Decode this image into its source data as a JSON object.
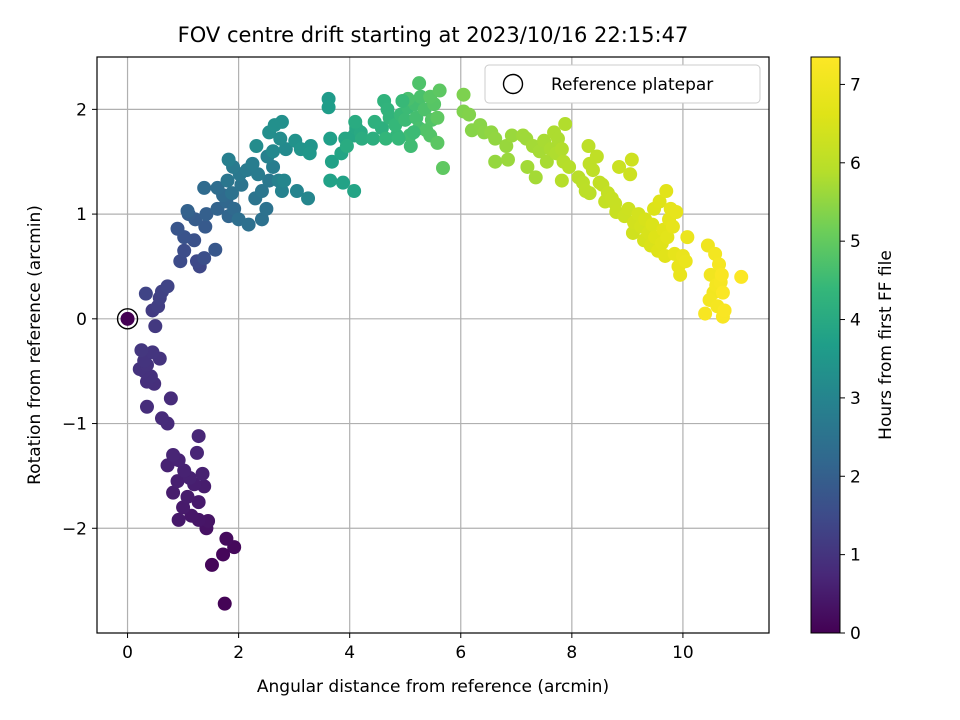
{
  "chart_data": {
    "type": "scatter",
    "title": "FOV centre drift starting at 2023/10/16 22:15:47",
    "xlabel": "Angular distance from reference (arcmin)",
    "ylabel": "Rotation from reference (arcmin)",
    "xlim": [
      -0.55,
      11.55
    ],
    "ylim": [
      -3.0,
      2.5
    ],
    "xticks": [
      0,
      2,
      4,
      6,
      8,
      10
    ],
    "yticks": [
      -2,
      -1,
      0,
      1,
      2
    ],
    "xtick_labels": [
      "0",
      "2",
      "4",
      "6",
      "8",
      "10"
    ],
    "ytick_labels": [
      "−2",
      "−1",
      "0",
      "1",
      "2"
    ],
    "grid": true,
    "legend": {
      "position": "top-right",
      "label": "Reference platepar"
    },
    "reference_point": {
      "x": 0,
      "y": 0
    },
    "colorbar": {
      "label": "Hours from first FF file",
      "colormap": "viridis",
      "range": [
        0,
        7.35
      ],
      "ticks": [
        0,
        1,
        2,
        3,
        4,
        5,
        6,
        7
      ],
      "tick_labels": [
        "0",
        "1",
        "2",
        "3",
        "4",
        "5",
        "6",
        "7"
      ]
    },
    "points": [
      [
        0.0,
        0.0,
        0.0
      ],
      [
        1.75,
        -2.72,
        0.05
      ],
      [
        1.52,
        -2.35,
        0.1
      ],
      [
        1.72,
        -2.25,
        0.12
      ],
      [
        1.92,
        -2.18,
        0.15
      ],
      [
        1.78,
        -2.1,
        0.18
      ],
      [
        1.42,
        -2.0,
        0.3
      ],
      [
        1.45,
        -1.93,
        0.35
      ],
      [
        1.28,
        -1.92,
        0.38
      ],
      [
        1.15,
        -1.88,
        0.4
      ],
      [
        0.92,
        -1.92,
        0.45
      ],
      [
        1.0,
        -1.8,
        0.47
      ],
      [
        1.28,
        -1.75,
        0.48
      ],
      [
        1.08,
        -1.7,
        0.5
      ],
      [
        0.82,
        -1.66,
        0.52
      ],
      [
        1.38,
        -1.6,
        0.52
      ],
      [
        1.2,
        -1.58,
        0.55
      ],
      [
        0.9,
        -1.55,
        0.57
      ],
      [
        1.12,
        -1.52,
        0.6
      ],
      [
        1.35,
        -1.48,
        0.6
      ],
      [
        1.02,
        -1.45,
        0.62
      ],
      [
        0.72,
        -1.4,
        0.62
      ],
      [
        0.92,
        -1.35,
        0.65
      ],
      [
        0.82,
        -1.3,
        0.68
      ],
      [
        1.25,
        -1.28,
        0.7
      ],
      [
        1.28,
        -1.12,
        0.72
      ],
      [
        0.72,
        -1.0,
        0.78
      ],
      [
        0.62,
        -0.95,
        0.8
      ],
      [
        0.78,
        -0.76,
        0.82
      ],
      [
        0.35,
        -0.84,
        0.85
      ],
      [
        0.48,
        -0.62,
        0.88
      ],
      [
        0.35,
        -0.6,
        0.9
      ],
      [
        0.42,
        -0.55,
        0.92
      ],
      [
        0.3,
        -0.5,
        0.94
      ],
      [
        0.22,
        -0.48,
        0.95
      ],
      [
        0.35,
        -0.44,
        0.97
      ],
      [
        0.58,
        -0.38,
        0.99
      ],
      [
        0.3,
        -0.4,
        1.0
      ],
      [
        0.45,
        -0.32,
        1.02
      ],
      [
        0.25,
        -0.3,
        1.05
      ],
      [
        0.5,
        -0.07,
        1.1
      ],
      [
        0.45,
        0.08,
        1.15
      ],
      [
        0.55,
        0.12,
        1.2
      ],
      [
        0.58,
        0.2,
        1.25
      ],
      [
        0.62,
        0.26,
        1.3
      ],
      [
        0.72,
        0.31,
        1.35
      ],
      [
        0.33,
        0.24,
        1.35
      ],
      [
        1.3,
        0.5,
        1.4
      ],
      [
        1.25,
        0.55,
        1.45
      ],
      [
        0.95,
        0.55,
        1.5
      ],
      [
        1.02,
        0.65,
        1.55
      ],
      [
        1.38,
        0.58,
        1.6
      ],
      [
        1.2,
        0.75,
        1.65
      ],
      [
        1.02,
        0.78,
        1.7
      ],
      [
        0.9,
        0.86,
        1.75
      ],
      [
        1.58,
        0.66,
        1.8
      ],
      [
        1.4,
        0.88,
        1.85
      ],
      [
        1.22,
        0.95,
        1.9
      ],
      [
        1.1,
        1.0,
        1.95
      ],
      [
        1.42,
        1.0,
        2.0
      ],
      [
        1.08,
        1.03,
        2.05
      ],
      [
        1.62,
        1.05,
        2.1
      ],
      [
        1.82,
        0.98,
        2.15
      ],
      [
        1.78,
        1.12,
        2.2
      ],
      [
        1.92,
        1.05,
        2.25
      ],
      [
        1.72,
        1.18,
        2.3
      ],
      [
        1.62,
        1.25,
        2.35
      ],
      [
        1.38,
        1.25,
        2.3
      ],
      [
        2.0,
        0.95,
        2.4
      ],
      [
        2.18,
        0.9,
        2.42
      ],
      [
        2.42,
        0.95,
        2.45
      ],
      [
        2.5,
        1.05,
        2.5
      ],
      [
        1.88,
        1.2,
        2.5
      ],
      [
        2.05,
        1.28,
        2.55
      ],
      [
        2.3,
        1.15,
        2.55
      ],
      [
        2.42,
        1.22,
        2.6
      ],
      [
        2.55,
        1.32,
        2.65
      ],
      [
        1.8,
        1.32,
        2.6
      ],
      [
        2.02,
        1.38,
        2.65
      ],
      [
        1.9,
        1.45,
        2.7
      ],
      [
        2.15,
        1.42,
        2.7
      ],
      [
        2.35,
        1.38,
        2.75
      ],
      [
        2.62,
        1.45,
        2.8
      ],
      [
        2.25,
        1.48,
        2.8
      ],
      [
        1.82,
        1.52,
        2.85
      ],
      [
        2.52,
        1.55,
        2.9
      ],
      [
        2.72,
        1.32,
        2.9
      ],
      [
        2.78,
        1.22,
        2.95
      ],
      [
        3.05,
        1.22,
        3.0
      ],
      [
        3.25,
        1.15,
        3.05
      ],
      [
        2.82,
        1.32,
        3.05
      ],
      [
        2.62,
        1.6,
        3.1
      ],
      [
        2.85,
        1.62,
        3.15
      ],
      [
        2.75,
        1.72,
        3.2
      ],
      [
        2.55,
        1.78,
        3.25
      ],
      [
        2.65,
        1.85,
        3.3
      ],
      [
        2.78,
        1.88,
        3.3
      ],
      [
        3.02,
        1.7,
        3.35
      ],
      [
        3.12,
        1.62,
        3.4
      ],
      [
        3.3,
        1.65,
        3.45
      ],
      [
        3.28,
        1.58,
        3.5
      ],
      [
        2.32,
        1.65,
        3.2
      ],
      [
        3.62,
        2.1,
        3.6
      ],
      [
        3.62,
        2.02,
        3.65
      ],
      [
        3.65,
        1.72,
        3.7
      ],
      [
        3.68,
        1.5,
        3.75
      ],
      [
        3.65,
        1.32,
        3.78
      ],
      [
        3.88,
        1.3,
        3.8
      ],
      [
        4.08,
        1.22,
        3.85
      ],
      [
        3.85,
        1.58,
        3.85
      ],
      [
        3.92,
        1.72,
        3.9
      ],
      [
        4.08,
        1.75,
        3.92
      ],
      [
        4.12,
        1.82,
        3.95
      ],
      [
        4.2,
        1.78,
        4.0
      ],
      [
        4.1,
        1.88,
        4.05
      ],
      [
        3.95,
        1.65,
        4.05
      ],
      [
        4.22,
        1.72,
        4.1
      ],
      [
        4.42,
        1.72,
        4.15
      ],
      [
        4.58,
        1.82,
        4.18
      ],
      [
        4.45,
        1.88,
        4.2
      ],
      [
        4.62,
        2.08,
        4.25
      ],
      [
        4.68,
        2.0,
        4.28
      ],
      [
        4.72,
        1.92,
        4.3
      ],
      [
        4.85,
        1.75,
        4.35
      ],
      [
        4.65,
        1.72,
        4.35
      ],
      [
        4.82,
        1.85,
        4.4
      ],
      [
        4.92,
        1.95,
        4.45
      ],
      [
        5.0,
        1.9,
        4.5
      ],
      [
        5.05,
        2.02,
        4.5
      ],
      [
        5.08,
        1.75,
        4.55
      ],
      [
        5.1,
        1.65,
        4.55
      ],
      [
        5.18,
        2.05,
        4.6
      ],
      [
        5.2,
        1.92,
        4.62
      ],
      [
        5.25,
        1.82,
        4.65
      ],
      [
        5.05,
        2.1,
        4.68
      ],
      [
        5.28,
        2.12,
        4.7
      ],
      [
        5.35,
        2.0,
        4.72
      ],
      [
        5.25,
        2.25,
        4.75
      ],
      [
        5.38,
        1.8,
        4.78
      ],
      [
        5.45,
        1.75,
        4.8
      ],
      [
        5.48,
        1.9,
        4.8
      ],
      [
        5.52,
        2.05,
        4.85
      ],
      [
        5.45,
        2.12,
        4.88
      ],
      [
        5.58,
        1.68,
        4.9
      ],
      [
        5.62,
        2.18,
        4.92
      ],
      [
        5.68,
        1.44,
        4.95
      ],
      [
        5.58,
        1.92,
        4.95
      ],
      [
        5.15,
        1.78,
        4.5
      ],
      [
        4.88,
        1.72,
        4.4
      ],
      [
        4.95,
        2.08,
        4.45
      ],
      [
        6.05,
        2.14,
        5.3
      ],
      [
        6.05,
        1.98,
        5.32
      ],
      [
        6.15,
        1.95,
        5.35
      ],
      [
        6.2,
        1.8,
        5.4
      ],
      [
        6.35,
        1.85,
        5.42
      ],
      [
        6.42,
        1.78,
        5.45
      ],
      [
        6.55,
        1.78,
        5.5
      ],
      [
        6.62,
        1.72,
        5.52
      ],
      [
        6.62,
        1.5,
        5.55
      ],
      [
        6.82,
        1.65,
        5.58
      ],
      [
        6.85,
        1.52,
        5.6
      ],
      [
        6.92,
        1.75,
        5.6
      ],
      [
        7.12,
        1.75,
        5.65
      ],
      [
        7.18,
        1.72,
        5.65
      ],
      [
        7.2,
        1.45,
        5.68
      ],
      [
        7.35,
        1.35,
        5.7
      ],
      [
        7.3,
        1.65,
        5.7
      ],
      [
        7.42,
        1.6,
        5.72
      ],
      [
        7.5,
        1.7,
        5.75
      ],
      [
        7.55,
        1.5,
        5.75
      ],
      [
        7.62,
        1.62,
        5.78
      ],
      [
        7.68,
        1.78,
        5.8
      ],
      [
        7.75,
        1.72,
        5.8
      ],
      [
        7.72,
        1.58,
        5.82
      ],
      [
        7.82,
        1.62,
        5.85
      ],
      [
        7.85,
        1.5,
        5.88
      ],
      [
        7.88,
        1.86,
        5.85
      ],
      [
        7.82,
        1.32,
        5.9
      ],
      [
        7.95,
        1.45,
        5.9
      ],
      [
        8.12,
        1.35,
        5.95
      ],
      [
        8.2,
        1.3,
        5.98
      ],
      [
        8.25,
        1.22,
        6.0
      ],
      [
        8.32,
        1.2,
        6.0
      ],
      [
        8.3,
        1.65,
        6.02
      ],
      [
        8.32,
        1.48,
        6.05
      ],
      [
        8.38,
        1.42,
        6.05
      ],
      [
        8.45,
        1.55,
        6.08
      ],
      [
        8.5,
        1.3,
        6.1
      ],
      [
        8.55,
        1.28,
        6.1
      ],
      [
        8.6,
        1.12,
        6.15
      ],
      [
        8.65,
        1.2,
        6.15
      ],
      [
        8.72,
        1.15,
        6.18
      ],
      [
        8.78,
        1.1,
        6.2
      ],
      [
        8.8,
        1.02,
        6.22
      ],
      [
        8.85,
        1.45,
        6.25
      ],
      [
        8.95,
        0.98,
        6.28
      ],
      [
        9.02,
        1.05,
        6.3
      ],
      [
        9.05,
        1.38,
        6.3
      ],
      [
        9.08,
        1.52,
        6.32
      ],
      [
        9.1,
        0.82,
        6.35
      ],
      [
        9.12,
        0.92,
        6.38
      ],
      [
        9.2,
        1.0,
        6.4
      ],
      [
        9.25,
        0.88,
        6.42
      ],
      [
        9.3,
        0.75,
        6.45
      ],
      [
        9.32,
        0.95,
        6.48
      ],
      [
        9.38,
        0.82,
        6.5
      ],
      [
        9.42,
        0.7,
        6.52
      ],
      [
        9.45,
        0.9,
        6.55
      ],
      [
        9.48,
        1.05,
        6.58
      ],
      [
        9.5,
        0.78,
        6.6
      ],
      [
        9.55,
        0.65,
        6.62
      ],
      [
        9.58,
        1.12,
        6.62
      ],
      [
        9.62,
        0.72,
        6.65
      ],
      [
        9.65,
        0.85,
        6.68
      ],
      [
        9.68,
        0.6,
        6.7
      ],
      [
        9.7,
        1.22,
        6.7
      ],
      [
        9.72,
        0.78,
        6.72
      ],
      [
        9.75,
        0.95,
        6.75
      ],
      [
        9.78,
        1.05,
        6.78
      ],
      [
        9.82,
        0.88,
        6.8
      ],
      [
        9.85,
        0.62,
        6.8
      ],
      [
        9.88,
        1.02,
        6.82
      ],
      [
        9.92,
        0.5,
        6.85
      ],
      [
        9.95,
        0.42,
        6.85
      ],
      [
        10.0,
        0.6,
        6.88
      ],
      [
        10.05,
        0.55,
        6.9
      ],
      [
        10.08,
        0.78,
        6.9
      ],
      [
        10.45,
        0.7,
        7.0
      ],
      [
        10.5,
        0.42,
        7.05
      ],
      [
        10.55,
        0.25,
        7.08
      ],
      [
        10.48,
        0.18,
        7.1
      ],
      [
        10.58,
        0.62,
        7.1
      ],
      [
        10.6,
        0.32,
        7.12
      ],
      [
        10.62,
        0.12,
        7.15
      ],
      [
        10.65,
        0.52,
        7.15
      ],
      [
        10.68,
        0.35,
        7.18
      ],
      [
        10.4,
        0.05,
        7.2
      ],
      [
        10.72,
        0.02,
        7.22
      ],
      [
        10.75,
        0.08,
        7.25
      ],
      [
        10.7,
        0.42,
        7.25
      ],
      [
        10.72,
        0.25,
        7.28
      ],
      [
        11.05,
        0.4,
        7.3
      ]
    ]
  }
}
